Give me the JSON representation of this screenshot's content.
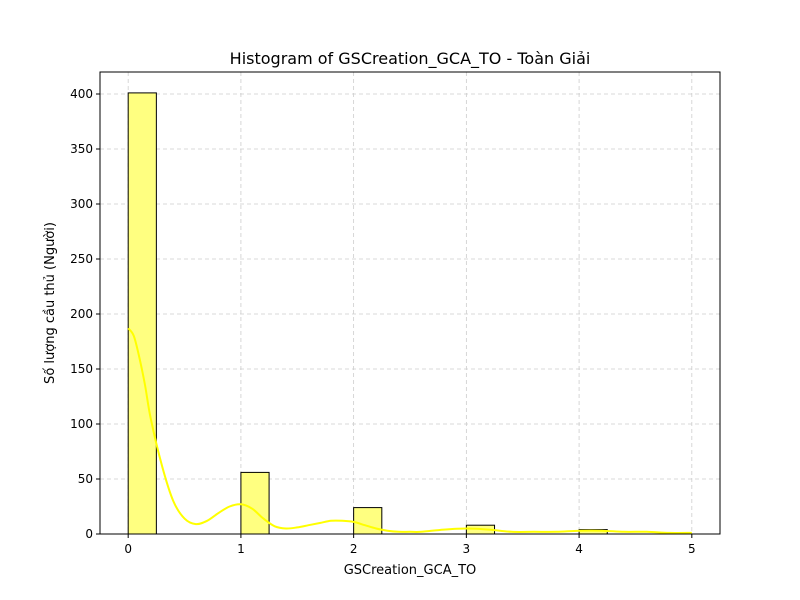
{
  "chart_data": {
    "type": "bar",
    "subtype": "histogram",
    "title": "Histogram of GSCreation_GCA_TO - Toàn Giải",
    "xlabel": "GSCreation_GCA_TO",
    "ylabel": "Số lượng cầu thủ (Người)",
    "xlim": [
      -0.25,
      5.25
    ],
    "ylim": [
      0,
      420
    ],
    "xticks": [
      0,
      1,
      2,
      3,
      4,
      5
    ],
    "yticks": [
      0,
      50,
      100,
      150,
      200,
      250,
      300,
      350,
      400
    ],
    "bins": [
      {
        "x0": 0.0,
        "x1": 0.25,
        "count": 401
      },
      {
        "x0": 0.25,
        "x1": 0.5,
        "count": 0
      },
      {
        "x0": 0.5,
        "x1": 0.75,
        "count": 0
      },
      {
        "x0": 0.75,
        "x1": 1.0,
        "count": 0
      },
      {
        "x0": 1.0,
        "x1": 1.25,
        "count": 56
      },
      {
        "x0": 1.25,
        "x1": 1.5,
        "count": 0
      },
      {
        "x0": 1.5,
        "x1": 1.75,
        "count": 0
      },
      {
        "x0": 1.75,
        "x1": 2.0,
        "count": 0
      },
      {
        "x0": 2.0,
        "x1": 2.25,
        "count": 24
      },
      {
        "x0": 2.25,
        "x1": 2.5,
        "count": 0
      },
      {
        "x0": 2.5,
        "x1": 2.75,
        "count": 0
      },
      {
        "x0": 2.75,
        "x1": 3.0,
        "count": 0
      },
      {
        "x0": 3.0,
        "x1": 3.25,
        "count": 8
      },
      {
        "x0": 3.25,
        "x1": 3.5,
        "count": 0
      },
      {
        "x0": 3.5,
        "x1": 3.75,
        "count": 0
      },
      {
        "x0": 3.75,
        "x1": 4.0,
        "count": 0
      },
      {
        "x0": 4.0,
        "x1": 4.25,
        "count": 4
      },
      {
        "x0": 4.25,
        "x1": 4.5,
        "count": 0
      },
      {
        "x0": 4.5,
        "x1": 4.75,
        "count": 0
      },
      {
        "x0": 4.75,
        "x1": 5.0,
        "count": 0
      }
    ],
    "kde": {
      "x": [
        0.0,
        0.05,
        0.1,
        0.15,
        0.2,
        0.3,
        0.4,
        0.5,
        0.6,
        0.7,
        0.8,
        0.9,
        1.0,
        1.1,
        1.2,
        1.3,
        1.4,
        1.5,
        1.6,
        1.7,
        1.8,
        1.9,
        2.0,
        2.1,
        2.2,
        2.3,
        2.4,
        2.5,
        2.6,
        2.8,
        3.0,
        3.2,
        3.4,
        3.6,
        3.8,
        4.0,
        4.2,
        4.4,
        4.6,
        4.8,
        5.0
      ],
      "y": [
        187,
        180,
        160,
        135,
        105,
        62,
        30,
        14,
        9,
        12,
        19,
        25,
        27,
        23,
        14,
        7,
        5,
        6,
        8,
        10,
        12,
        12,
        11,
        8,
        5,
        3,
        2,
        2,
        2,
        4,
        5,
        4,
        2,
        2,
        2,
        3,
        3,
        2,
        2,
        1,
        1
      ]
    },
    "grid": true,
    "bar_fill": "#ffff80",
    "bar_edge": "#000000",
    "kde_color": "#ffff00",
    "grid_color": "#cccccc"
  }
}
